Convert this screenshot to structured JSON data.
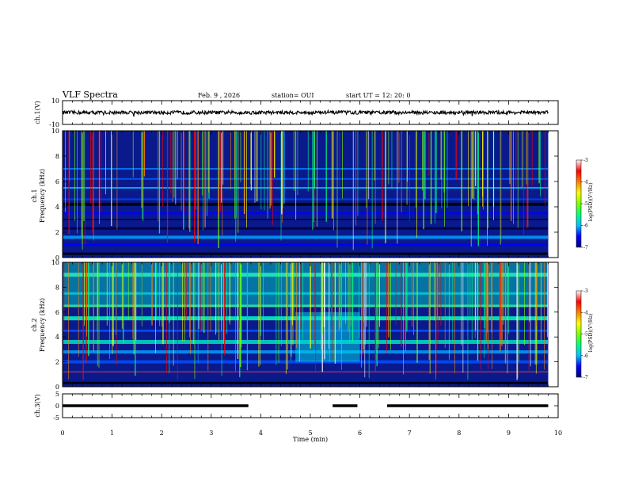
{
  "header": {
    "title": "VLF Spectra",
    "date": "Feb. 9  , 2026",
    "station": "station= OUI",
    "start_ut": "start  UT  =    12: 20: 0"
  },
  "colors": {
    "trace": "#000000",
    "spectrogram_bg": "#0a1a8c",
    "colorbar_stops": [
      "#000080",
      "#0000ff",
      "#00c0ff",
      "#00ff80",
      "#80ff00",
      "#ffff00",
      "#ff8000",
      "#ff0000",
      "#ffffff"
    ]
  },
  "chart_data": [
    {
      "type": "line",
      "panel": "ch1-voltage",
      "ylabel": "ch.1(V)",
      "ylim": [
        -10,
        10
      ],
      "yticks": [
        "10",
        "-10"
      ],
      "xlim": [
        0,
        10
      ],
      "series": [
        {
          "name": "ch.1",
          "description_level": 0,
          "noise_amplitude": 1.5
        }
      ]
    },
    {
      "type": "heatmap",
      "panel": "ch1-spectrogram",
      "ylabel_top": "ch.1",
      "ylabel": "Frequency  (kHz)",
      "ylim": [
        0,
        10
      ],
      "yticks": [
        "0",
        "2",
        "4",
        "6",
        "8",
        "10"
      ],
      "xlim": [
        0,
        10
      ],
      "colorbar": {
        "label": "log(PSD)(V²/Hz)",
        "range": [
          -7,
          -3
        ],
        "ticks": [
          "-3",
          "-4",
          "-5",
          "-6",
          "-7"
        ]
      }
    },
    {
      "type": "heatmap",
      "panel": "ch2-spectrogram",
      "ylabel_top": "ch.2",
      "ylabel": "Frequency  (kHz)",
      "ylim": [
        0,
        10
      ],
      "yticks": [
        "0",
        "2",
        "4",
        "6",
        "8",
        "10"
      ],
      "xlim": [
        0,
        10
      ],
      "colorbar": {
        "label": "log(PSD)(V²/Hz)",
        "range": [
          -7,
          -3
        ],
        "ticks": [
          "-3",
          "-4",
          "-5",
          "-6",
          "-7"
        ]
      }
    },
    {
      "type": "line",
      "panel": "ch3-voltage",
      "ylabel": "ch.3(V)",
      "ylim": [
        -5,
        5
      ],
      "yticks": [
        "5",
        "0",
        "-5"
      ],
      "xlim": [
        0,
        10
      ],
      "xlabel": "Time  (min)",
      "xticks": [
        "0",
        "1",
        "2",
        "3",
        "4",
        "5",
        "6",
        "7",
        "8",
        "9",
        "10"
      ],
      "segments": [
        {
          "from": 0.0,
          "to": 3.75,
          "level": 0
        },
        {
          "from": 5.45,
          "to": 5.95,
          "level": 0
        },
        {
          "from": 6.55,
          "to": 9.8,
          "level": 0
        }
      ],
      "data_end": 9.8
    }
  ]
}
